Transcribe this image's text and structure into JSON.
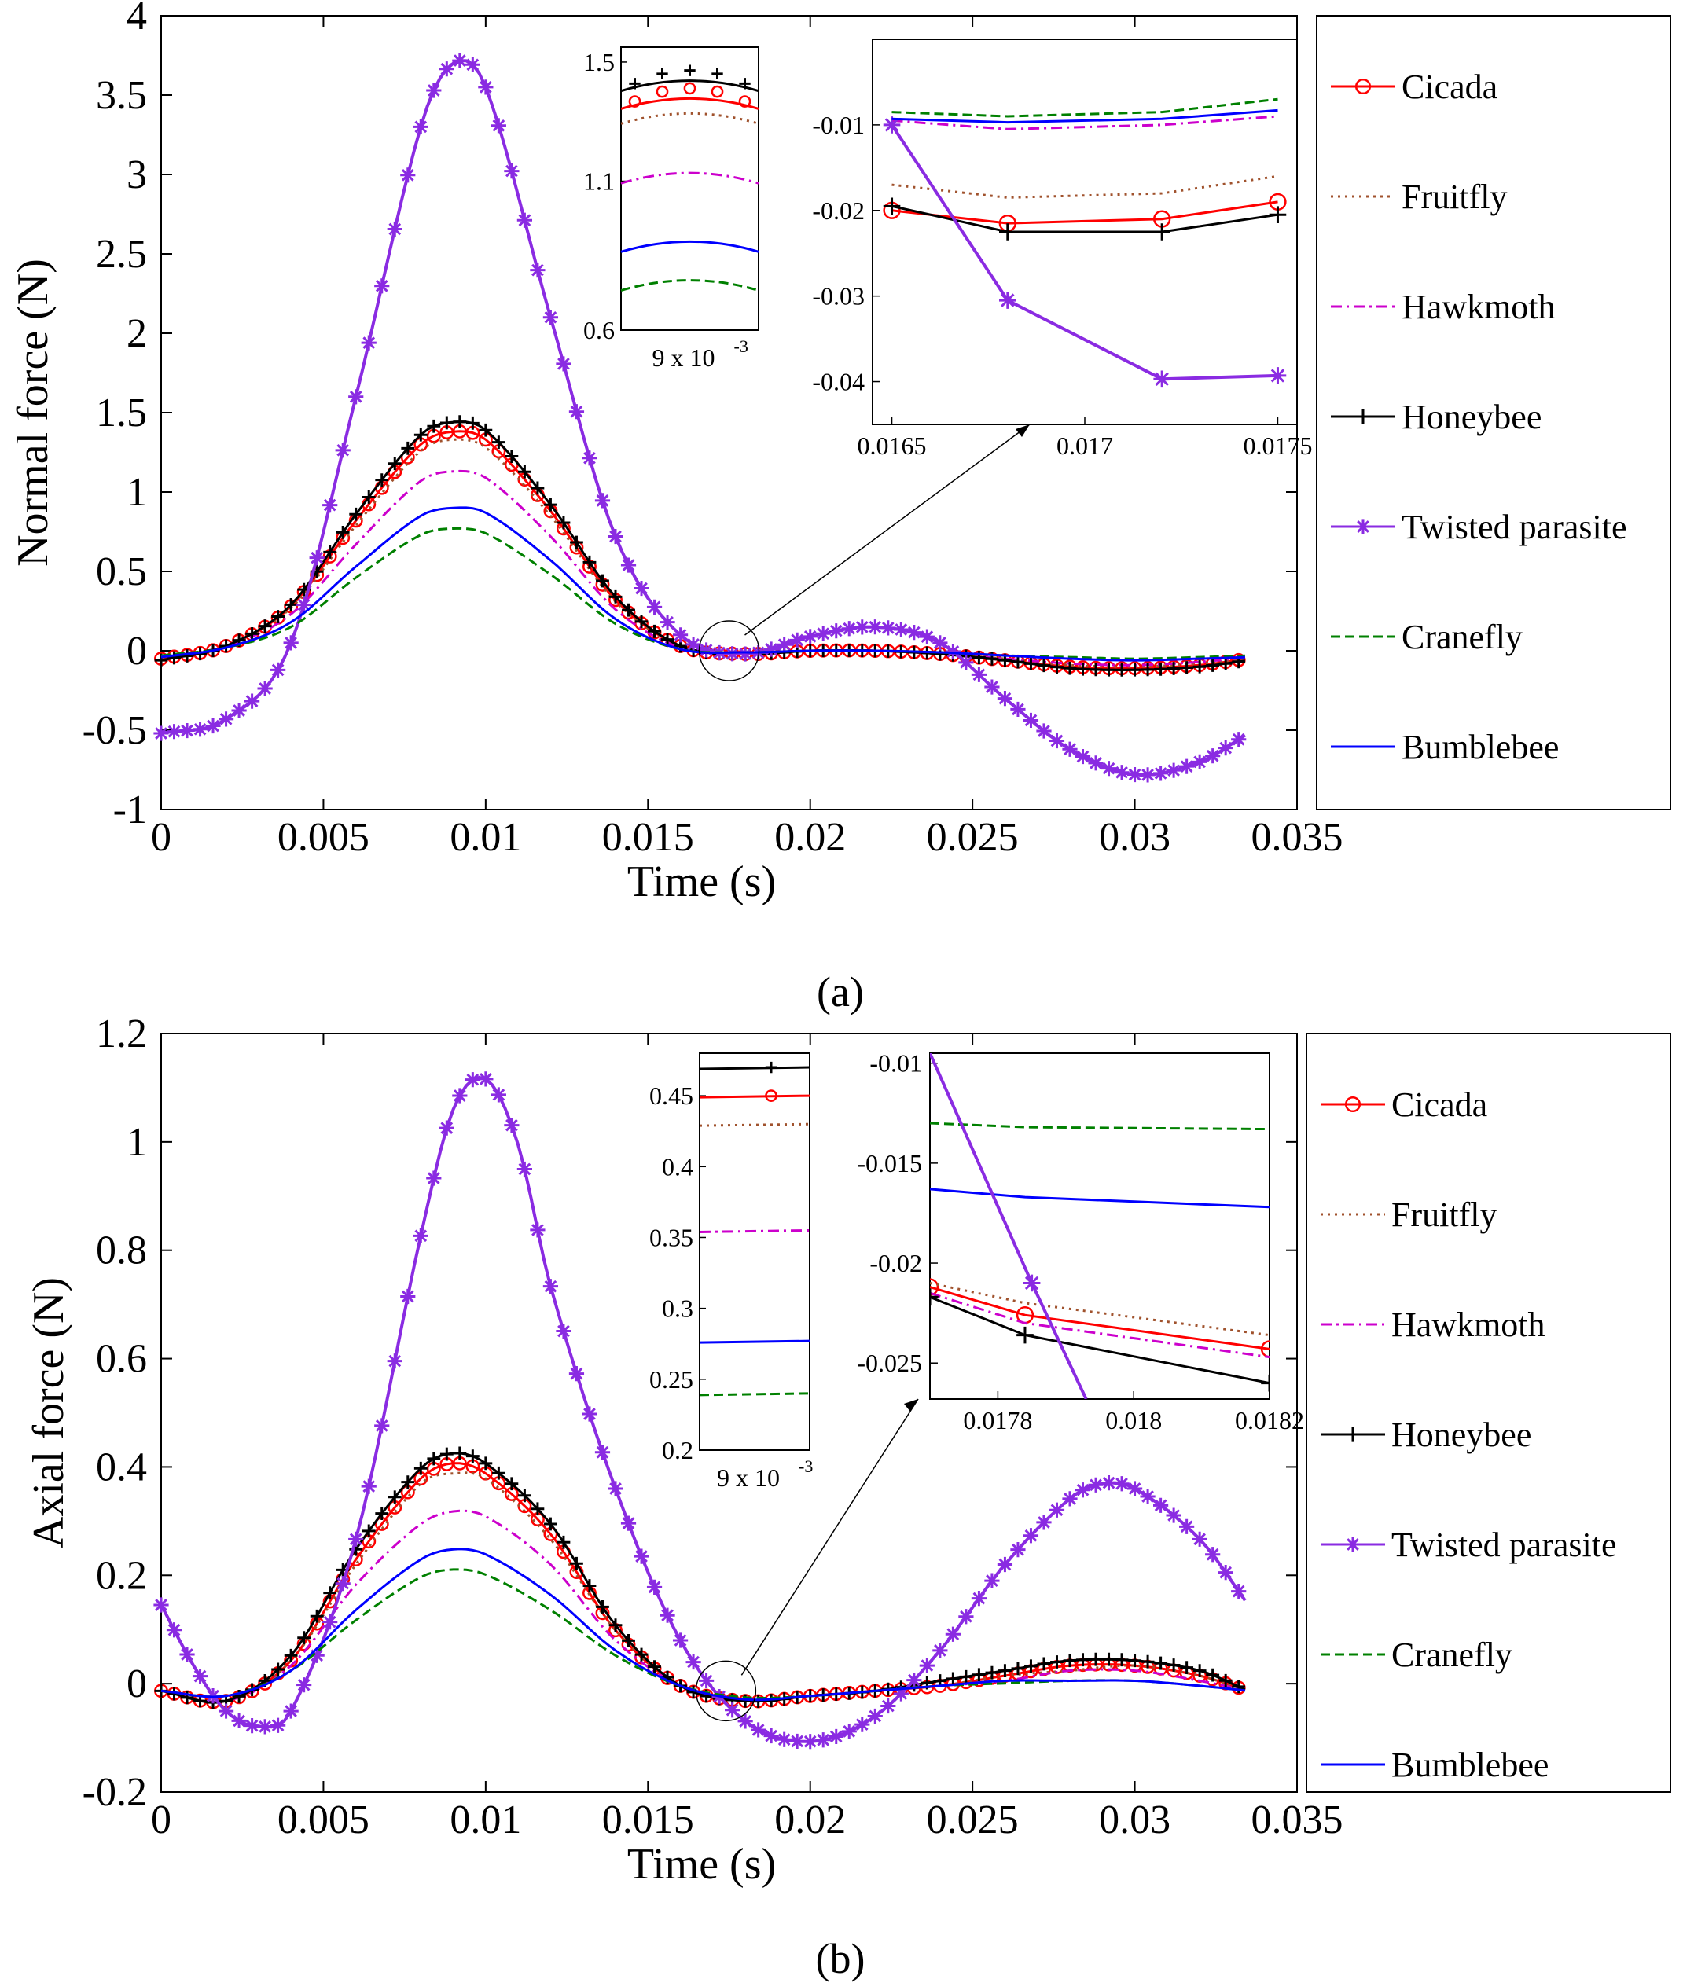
{
  "captions": [
    "(a)",
    "(b)"
  ],
  "series_styles": [
    {
      "name": "Cicada",
      "color": "#ff0000",
      "dash": "",
      "marker": "circle"
    },
    {
      "name": "Fruitfly",
      "color": "#a0522d",
      "dash": "3,6",
      "marker": "none"
    },
    {
      "name": "Hawkmoth",
      "color": "#cc00cc",
      "dash": "14,6,3,6",
      "marker": "none"
    },
    {
      "name": "Honeybee",
      "color": "#000000",
      "dash": "",
      "marker": "plus"
    },
    {
      "name": "Twisted parasite",
      "color": "#8a2be2",
      "dash": "",
      "marker": "star"
    },
    {
      "name": "Cranefly",
      "color": "#008000",
      "dash": "12,6",
      "marker": "none"
    },
    {
      "name": "Bumblebee",
      "color": "#0000ff",
      "dash": "",
      "marker": "none"
    }
  ],
  "chart_data": [
    {
      "type": "line",
      "caption": "(a)",
      "xlabel": "Time (s)",
      "ylabel": "Normal force (N)",
      "xlim": [
        0,
        0.035
      ],
      "ylim": [
        -1,
        4
      ],
      "xticks": [
        "0",
        "0.005",
        "0.01",
        "0.015",
        "0.02",
        "0.025",
        "0.03",
        "0.035"
      ],
      "yticks": [
        "-1",
        "-0.5",
        "0",
        "0.5",
        "1",
        "1.5",
        "2",
        "2.5",
        "3",
        "3.5",
        "4"
      ],
      "legend": [
        "Cicada",
        "Fruitfly",
        "Hawkmoth",
        "Honeybee",
        "Twisted parasite",
        "Cranefly",
        "Bumblebee"
      ],
      "series": [
        {
          "name": "Cicada",
          "x": [
            0,
            0.002,
            0.004,
            0.006,
            0.008,
            0.009,
            0.01,
            0.012,
            0.014,
            0.016,
            0.018,
            0.02,
            0.022,
            0.024,
            0.026,
            0.028,
            0.03,
            0.032,
            0.0335
          ],
          "y": [
            -0.05,
            0.03,
            0.28,
            0.82,
            1.3,
            1.38,
            1.33,
            0.88,
            0.32,
            0.03,
            -0.02,
            0.0,
            0.0,
            -0.02,
            -0.06,
            -0.1,
            -0.11,
            -0.09,
            -0.05
          ]
        },
        {
          "name": "Fruitfly",
          "x": [
            0,
            0.002,
            0.004,
            0.006,
            0.008,
            0.009,
            0.01,
            0.012,
            0.014,
            0.016,
            0.018,
            0.02,
            0.022,
            0.024,
            0.026,
            0.028,
            0.03,
            0.032,
            0.0335
          ],
          "y": [
            -0.05,
            0.03,
            0.27,
            0.79,
            1.26,
            1.33,
            1.28,
            0.85,
            0.31,
            0.03,
            -0.02,
            0.0,
            0.0,
            -0.02,
            -0.05,
            -0.09,
            -0.1,
            -0.08,
            -0.05
          ]
        },
        {
          "name": "Hawkmoth",
          "x": [
            0,
            0.002,
            0.004,
            0.006,
            0.008,
            0.009,
            0.01,
            0.012,
            0.014,
            0.016,
            0.018,
            0.02,
            0.022,
            0.024,
            0.026,
            0.028,
            0.03,
            0.032,
            0.0335
          ],
          "y": [
            -0.04,
            0.03,
            0.23,
            0.67,
            1.07,
            1.13,
            1.09,
            0.72,
            0.26,
            0.02,
            -0.01,
            0.0,
            0.0,
            -0.02,
            -0.05,
            -0.08,
            -0.09,
            -0.07,
            -0.04
          ]
        },
        {
          "name": "Honeybee",
          "x": [
            0,
            0.002,
            0.004,
            0.006,
            0.008,
            0.009,
            0.01,
            0.012,
            0.014,
            0.016,
            0.018,
            0.02,
            0.022,
            0.024,
            0.026,
            0.028,
            0.03,
            0.032,
            0.0335
          ],
          "y": [
            -0.06,
            0.03,
            0.29,
            0.86,
            1.36,
            1.44,
            1.39,
            0.92,
            0.34,
            0.03,
            -0.02,
            0.0,
            0.0,
            -0.02,
            -0.06,
            -0.11,
            -0.12,
            -0.1,
            -0.06
          ]
        },
        {
          "name": "Twisted parasite",
          "x": [
            0,
            0.002,
            0.004,
            0.006,
            0.008,
            0.009,
            0.01,
            0.012,
            0.014,
            0.016,
            0.018,
            0.02,
            0.022,
            0.024,
            0.026,
            0.028,
            0.03,
            0.032,
            0.0335
          ],
          "y": [
            -0.52,
            -0.43,
            0.05,
            1.6,
            3.3,
            3.7,
            3.55,
            2.1,
            0.72,
            0.1,
            -0.02,
            0.09,
            0.15,
            0.05,
            -0.3,
            -0.62,
            -0.78,
            -0.7,
            -0.52
          ]
        },
        {
          "name": "Cranefly",
          "x": [
            0,
            0.002,
            0.004,
            0.006,
            0.008,
            0.009,
            0.01,
            0.012,
            0.014,
            0.016,
            0.018,
            0.02,
            0.022,
            0.024,
            0.026,
            0.028,
            0.03,
            0.032,
            0.0335
          ],
          "y": [
            -0.03,
            0.02,
            0.15,
            0.46,
            0.73,
            0.77,
            0.74,
            0.48,
            0.17,
            0.01,
            -0.01,
            0.0,
            0.0,
            -0.01,
            -0.03,
            -0.04,
            -0.05,
            -0.04,
            -0.03
          ]
        },
        {
          "name": "Bumblebee",
          "x": [
            0,
            0.002,
            0.004,
            0.006,
            0.008,
            0.009,
            0.01,
            0.012,
            0.014,
            0.016,
            0.018,
            0.02,
            0.022,
            0.024,
            0.026,
            0.028,
            0.03,
            0.032,
            0.0335
          ],
          "y": [
            -0.04,
            0.02,
            0.18,
            0.53,
            0.85,
            0.9,
            0.87,
            0.57,
            0.2,
            0.01,
            -0.01,
            0.0,
            0.0,
            -0.01,
            -0.03,
            -0.05,
            -0.06,
            -0.05,
            -0.04
          ]
        }
      ],
      "inset_peak": {
        "yticks": [
          "0.6",
          "1.1",
          "1.5"
        ],
        "ylim": [
          0.6,
          1.55
        ],
        "xlabel": "9 x 10",
        "xlabel_exp": "-3",
        "values": {
          "Cicada": 1.38,
          "Fruitfly": 1.33,
          "Hawkmoth": 1.13,
          "Honeybee": 1.44,
          "Cranefly": 0.77,
          "Bumblebee": 0.9
        }
      },
      "inset_zoom": {
        "xlim": [
          0.01645,
          0.01755
        ],
        "ylim": [
          -0.045,
          0.0
        ],
        "xticks": [
          "0.0165",
          "0.017",
          "0.0175"
        ],
        "yticks": [
          "-0.01",
          "-0.02",
          "-0.03",
          "-0.04"
        ],
        "x": [
          0.0165,
          0.0168,
          0.0172,
          0.0175
        ],
        "series": {
          "Cicada": [
            -0.02,
            -0.0215,
            -0.021,
            -0.019
          ],
          "Fruitfly": [
            -0.017,
            -0.0185,
            -0.018,
            -0.016
          ],
          "Hawkmoth": [
            -0.0095,
            -0.0105,
            -0.01,
            -0.009
          ],
          "Honeybee": [
            -0.0195,
            -0.0225,
            -0.0225,
            -0.0205
          ],
          "Twisted parasite": [
            -0.01,
            -0.0305,
            -0.0397,
            -0.0393
          ],
          "Cranefly": [
            -0.0085,
            -0.009,
            -0.0085,
            -0.007
          ],
          "Bumblebee": [
            -0.0093,
            -0.0097,
            -0.0093,
            -0.0083
          ]
        }
      }
    },
    {
      "type": "line",
      "caption": "(b)",
      "xlabel": "Time (s)",
      "ylabel": "Axial force (N)",
      "xlim": [
        0,
        0.035
      ],
      "ylim": [
        -0.2,
        1.3
      ],
      "xticks": [
        "0",
        "0.005",
        "0.01",
        "0.015",
        "0.02",
        "0.025",
        "0.03",
        "0.035"
      ],
      "yticks": [
        "-0.2",
        "0",
        "0.2",
        "0.4",
        "0.6",
        "0.8",
        "1",
        "1.2"
      ],
      "legend": [
        "Cicada",
        "Fruitfly",
        "Hawkmoth",
        "Honeybee",
        "Twisted parasite",
        "Cranefly",
        "Bumblebee"
      ],
      "series": [
        {
          "name": "Cicada",
          "x": [
            0,
            0.002,
            0.004,
            0.006,
            0.008,
            0.009,
            0.01,
            0.012,
            0.014,
            0.016,
            0.018,
            0.02,
            0.022,
            0.024,
            0.026,
            0.028,
            0.03,
            0.032,
            0.0335
          ],
          "y": [
            0.0,
            -0.02,
            0.06,
            0.26,
            0.42,
            0.45,
            0.43,
            0.31,
            0.12,
            0.01,
            -0.02,
            -0.01,
            0.0,
            0.01,
            0.03,
            0.05,
            0.05,
            0.03,
            0.0
          ]
        },
        {
          "name": "Fruitfly",
          "x": [
            0,
            0.002,
            0.004,
            0.006,
            0.008,
            0.009,
            0.01,
            0.012,
            0.014,
            0.016,
            0.018,
            0.02,
            0.022,
            0.024,
            0.026,
            0.028,
            0.03,
            0.032,
            0.0335
          ],
          "y": [
            0.0,
            -0.02,
            0.06,
            0.25,
            0.41,
            0.43,
            0.42,
            0.3,
            0.12,
            0.01,
            -0.02,
            -0.01,
            0.0,
            0.01,
            0.03,
            0.04,
            0.05,
            0.03,
            0.0
          ]
        },
        {
          "name": "Hawkmoth",
          "x": [
            0,
            0.002,
            0.004,
            0.006,
            0.008,
            0.009,
            0.01,
            0.012,
            0.014,
            0.016,
            0.018,
            0.02,
            0.022,
            0.024,
            0.026,
            0.028,
            0.03,
            0.032,
            0.0335
          ],
          "y": [
            0.0,
            -0.02,
            0.05,
            0.21,
            0.33,
            0.355,
            0.345,
            0.25,
            0.1,
            0.01,
            -0.02,
            -0.01,
            0.0,
            0.01,
            0.02,
            0.04,
            0.04,
            0.02,
            0.0
          ]
        },
        {
          "name": "Honeybee",
          "x": [
            0,
            0.002,
            0.004,
            0.006,
            0.008,
            0.009,
            0.01,
            0.012,
            0.014,
            0.016,
            0.018,
            0.02,
            0.022,
            0.024,
            0.026,
            0.028,
            0.03,
            0.032,
            0.0335
          ],
          "y": [
            0.0,
            -0.02,
            0.07,
            0.28,
            0.44,
            0.47,
            0.45,
            0.33,
            0.13,
            0.01,
            -0.02,
            -0.01,
            0.0,
            0.02,
            0.04,
            0.06,
            0.06,
            0.04,
            0.0
          ]
        },
        {
          "name": "Twisted parasite",
          "x": [
            0,
            0.001,
            0.002,
            0.003,
            0.004,
            0.006,
            0.008,
            0.009,
            0.01,
            0.011,
            0.012,
            0.014,
            0.016,
            0.018,
            0.02,
            0.022,
            0.024,
            0.026,
            0.028,
            0.029,
            0.03,
            0.032,
            0.0335
          ],
          "y": [
            0.17,
            0.05,
            -0.04,
            -0.07,
            -0.04,
            0.3,
            0.9,
            1.15,
            1.21,
            1.08,
            0.8,
            0.4,
            0.1,
            -0.06,
            -0.1,
            -0.05,
            0.08,
            0.25,
            0.38,
            0.41,
            0.4,
            0.3,
            0.17
          ]
        },
        {
          "name": "Cranefly",
          "x": [
            0,
            0.002,
            0.004,
            0.006,
            0.008,
            0.009,
            0.01,
            0.012,
            0.014,
            0.016,
            0.018,
            0.02,
            0.022,
            0.024,
            0.026,
            0.028,
            0.03,
            0.032,
            0.0335
          ],
          "y": [
            0.0,
            -0.01,
            0.04,
            0.14,
            0.225,
            0.24,
            0.23,
            0.16,
            0.07,
            0.01,
            -0.013,
            -0.01,
            0.0,
            0.01,
            0.015,
            0.02,
            0.02,
            0.01,
            0.0
          ]
        },
        {
          "name": "Bumblebee",
          "x": [
            0,
            0.002,
            0.004,
            0.006,
            0.008,
            0.009,
            0.01,
            0.012,
            0.014,
            0.016,
            0.018,
            0.02,
            0.022,
            0.024,
            0.026,
            0.028,
            0.03,
            0.032,
            0.0335
          ],
          "y": [
            0.0,
            -0.01,
            0.04,
            0.16,
            0.26,
            0.28,
            0.27,
            0.19,
            0.08,
            0.01,
            -0.017,
            -0.01,
            0.0,
            0.01,
            0.02,
            0.02,
            0.02,
            0.01,
            0.0
          ]
        }
      ],
      "inset_peak": {
        "yticks": [
          "0.2",
          "0.25",
          "0.3",
          "0.35",
          "0.4",
          "0.45"
        ],
        "ylim": [
          0.2,
          0.48
        ],
        "xlabel": "9 x 10",
        "xlabel_exp": "-3",
        "values": {
          "Cicada": 0.45,
          "Fruitfly": 0.43,
          "Hawkmoth": 0.355,
          "Honeybee": 0.47,
          "Cranefly": 0.24,
          "Bumblebee": 0.277
        }
      },
      "inset_zoom": {
        "xlim": [
          0.0177,
          0.0182
        ],
        "ylim": [
          -0.0268,
          -0.0095
        ],
        "xticks": [
          "0.0178",
          "0.018",
          "0.0182"
        ],
        "yticks": [
          "-0.01",
          "-0.015",
          "-0.02",
          "-0.025"
        ],
        "x": [
          0.0177,
          0.01784,
          0.0182
        ],
        "series": {
          "Cicada": [
            -0.0212,
            -0.0226,
            -0.0243
          ],
          "Fruitfly": [
            -0.021,
            -0.022,
            -0.0236
          ],
          "Hawkmoth": [
            -0.0215,
            -0.023,
            -0.0247
          ],
          "Honeybee": [
            -0.0217,
            -0.0236,
            -0.026
          ],
          "Cranefly": [
            -0.013,
            -0.0132,
            -0.0133
          ],
          "Bumblebee": [
            -0.0163,
            -0.0167,
            -0.0172
          ]
        },
        "twisted_x": [
          0.0177,
          0.01785,
          0.01793
        ],
        "twisted_y": [
          -0.0095,
          -0.021,
          -0.0268
        ]
      }
    }
  ]
}
